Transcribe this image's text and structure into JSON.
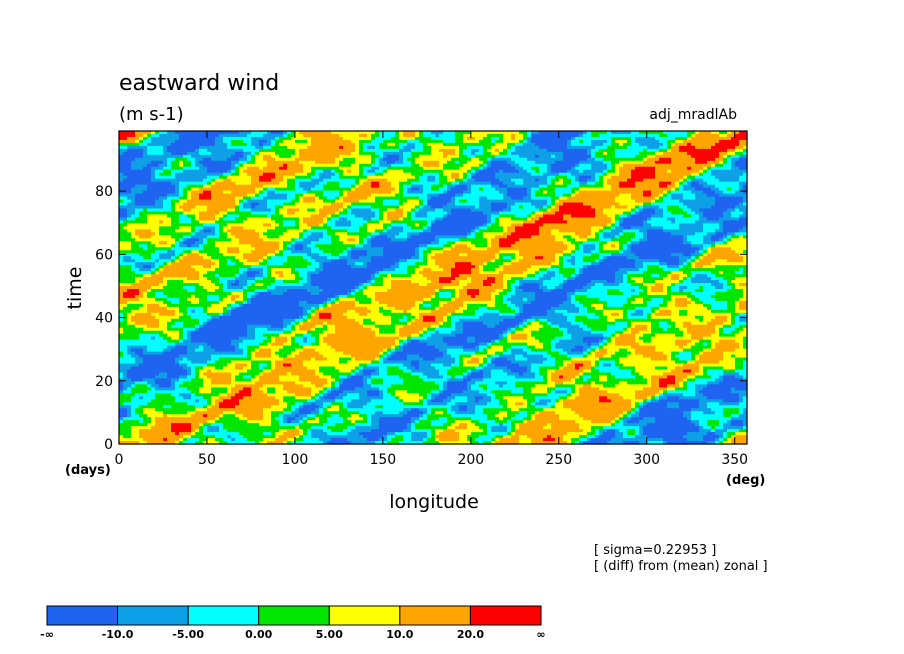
{
  "chart_data": {
    "type": "heatmap",
    "title": "eastward wind",
    "units": "(m s-1)",
    "run_label": "adj_mradlAb",
    "xlabel": "longitude",
    "ylabel": "time",
    "x_unit": "(deg)",
    "y_unit": "(days)",
    "xlim": [
      0,
      357
    ],
    "ylim": [
      0,
      99
    ],
    "xticks": [
      0,
      50,
      100,
      150,
      200,
      250,
      300,
      350
    ],
    "yticks": [
      0,
      20,
      40,
      60,
      80
    ],
    "notes": [
      "[ sigma=0.22953 ]",
      "[ (diff) from (mean) zonal ]"
    ],
    "colorbar": {
      "levels": [
        "-∞",
        "-10.0",
        "-5.00",
        "0.00",
        "5.00",
        "10.0",
        "20.0",
        "∞"
      ],
      "colors": [
        "#1e64f0",
        "#0ea0e6",
        "#00ffff",
        "#00e600",
        "#ffff00",
        "#ffa500",
        "#ff0000"
      ]
    },
    "field": {
      "description_of_pattern": "eastward-propagating streaks of positive anomaly",
      "phase_speed_deg_per_day": 3.0
    }
  }
}
